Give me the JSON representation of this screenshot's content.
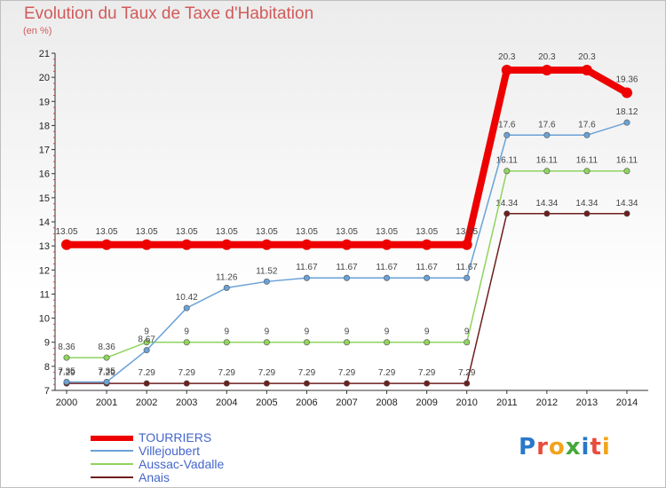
{
  "chart_data": {
    "type": "line",
    "title": "Evolution du Taux de Taxe d'Habitation",
    "subtitle": "(en %)",
    "xlabel": "",
    "ylabel": "",
    "categories": [
      "2000",
      "2001",
      "2002",
      "2003",
      "2004",
      "2005",
      "2006",
      "2007",
      "2008",
      "2009",
      "2010",
      "2011",
      "2012",
      "2013",
      "2014"
    ],
    "ylim": [
      7,
      21
    ],
    "yticks": [
      7,
      8,
      9,
      10,
      11,
      12,
      13,
      14,
      15,
      16,
      17,
      18,
      19,
      20,
      21
    ],
    "grid": false,
    "legend_position": "bottom-left",
    "series": [
      {
        "name": "Anais",
        "color": "#6e1e1e",
        "values": [
          7.29,
          7.29,
          7.29,
          7.29,
          7.29,
          7.29,
          7.29,
          7.29,
          7.29,
          7.29,
          7.29,
          14.34,
          14.34,
          14.34,
          14.34
        ],
        "labels": [
          "7.29",
          "7.29",
          "7.29",
          "7.29",
          "7.29",
          "7.29",
          "7.29",
          "7.29",
          "7.29",
          "7.29",
          "7.29",
          "14.34",
          "14.34",
          "14.34",
          "14.34"
        ]
      },
      {
        "name": "Aussac-Vadalle",
        "color": "#8fd45e",
        "values": [
          8.36,
          8.36,
          9,
          9,
          9,
          9,
          9,
          9,
          9,
          9,
          9,
          16.11,
          16.11,
          16.11,
          16.11
        ],
        "labels": [
          "8.36",
          "8.36",
          "9",
          "9",
          "9",
          "9",
          "9",
          "9",
          "9",
          "9",
          "9",
          "16.11",
          "16.11",
          "16.11",
          "16.11"
        ]
      },
      {
        "name": "Villejoubert",
        "color": "#6aa2d6",
        "values": [
          7.35,
          7.35,
          8.67,
          10.42,
          11.26,
          11.52,
          11.67,
          11.67,
          11.67,
          11.67,
          11.67,
          17.6,
          17.6,
          17.6,
          18.12
        ],
        "labels": [
          "7.35",
          "7.35",
          "8.67",
          "10.42",
          "11.26",
          "11.52",
          "11.67",
          "11.67",
          "11.67",
          "11.67",
          "11.67",
          "17.6",
          "17.6",
          "17.6",
          "18.12"
        ]
      },
      {
        "name": "TOURRIERS",
        "color": "#ee0000",
        "values": [
          13.05,
          13.05,
          13.05,
          13.05,
          13.05,
          13.05,
          13.05,
          13.05,
          13.05,
          13.05,
          13.05,
          20.3,
          20.3,
          20.3,
          19.36
        ],
        "labels": [
          "13.05",
          "13.05",
          "13.05",
          "13.05",
          "13.05",
          "13.05",
          "13.05",
          "13.05",
          "13.05",
          "13.05",
          "13.05",
          "20.3",
          "20.3",
          "20.3",
          "19.36"
        ]
      }
    ],
    "legend": [
      "TOURRIERS",
      "Villejoubert",
      "Aussac-Vadalle",
      "Anais"
    ]
  },
  "logo": {
    "text": "Proxiti"
  }
}
